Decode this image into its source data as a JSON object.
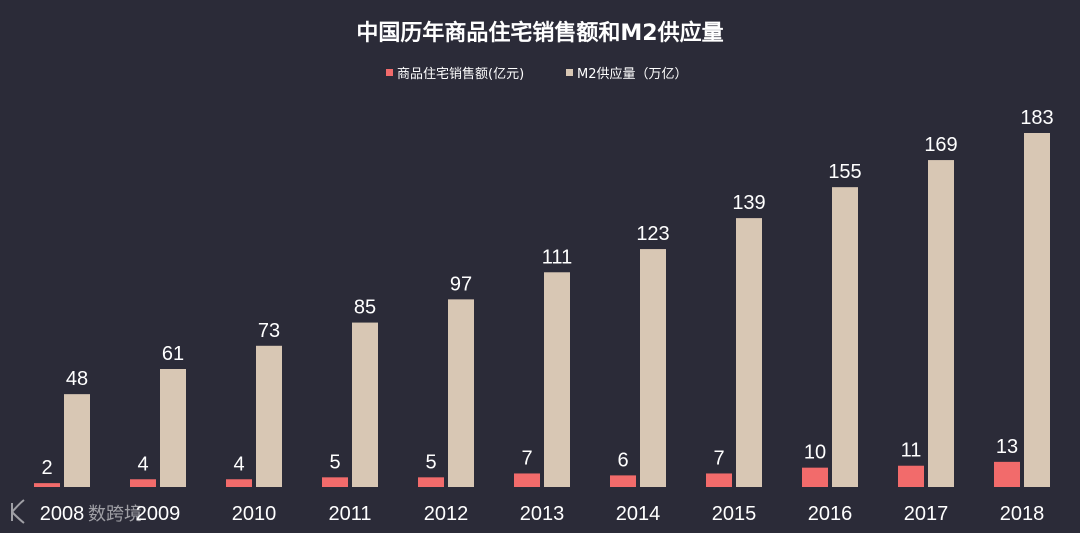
{
  "chart_data": {
    "type": "bar",
    "title": "中国历年商品住宅销售额和M2供应量",
    "categories": [
      "2008",
      "2009",
      "2010",
      "2011",
      "2012",
      "2013",
      "2014",
      "2015",
      "2016",
      "2017",
      "2018"
    ],
    "series": [
      {
        "name": "商品住宅销售额(亿元)",
        "color": "#f26b6b",
        "values": [
          2,
          4,
          4,
          5,
          5,
          7,
          6,
          7,
          10,
          11,
          13
        ]
      },
      {
        "name": "M2供应量（万亿）",
        "color": "#d8c7b4",
        "values": [
          48,
          61,
          73,
          85,
          97,
          111,
          123,
          139,
          155,
          169,
          183
        ]
      }
    ],
    "ylim": [
      0,
      183
    ],
    "grid": false,
    "legend": "top-center",
    "data_labels": true
  },
  "watermark": {
    "text": "数跨境",
    "icon": "watermark-logo-icon"
  },
  "colors": {
    "background": "#2b2b38",
    "text": "#ffffff"
  }
}
